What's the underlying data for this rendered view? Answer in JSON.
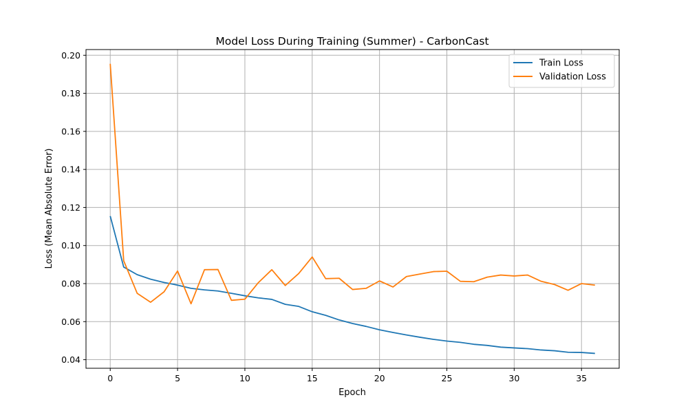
{
  "chart_data": {
    "type": "line",
    "title": "Model Loss During Training (Summer) - CarbonCast",
    "xlabel": "Epoch",
    "ylabel": "Loss (Mean Absolute Error)",
    "xlim": [
      -1.8,
      37.8
    ],
    "ylim": [
      0.0355,
      0.203
    ],
    "xticks": [
      0,
      5,
      10,
      15,
      20,
      25,
      30,
      35
    ],
    "yticks": [
      0.04,
      0.06,
      0.08,
      0.1,
      0.12,
      0.14,
      0.16,
      0.18,
      0.2
    ],
    "xtick_labels": [
      "0",
      "5",
      "10",
      "15",
      "20",
      "25",
      "30",
      "35"
    ],
    "ytick_labels": [
      "0.04",
      "0.06",
      "0.08",
      "0.10",
      "0.12",
      "0.14",
      "0.16",
      "0.18",
      "0.20"
    ],
    "grid": true,
    "legend_position": "top-right",
    "x": [
      0,
      1,
      2,
      3,
      4,
      5,
      6,
      7,
      8,
      9,
      10,
      11,
      12,
      13,
      14,
      15,
      16,
      17,
      18,
      19,
      20,
      21,
      22,
      23,
      24,
      25,
      26,
      27,
      28,
      29,
      30,
      31,
      32,
      33,
      34,
      35,
      36
    ],
    "series": [
      {
        "name": "Train Loss",
        "color": "#1f77b4",
        "values": [
          0.1155,
          0.0887,
          0.0847,
          0.0823,
          0.0806,
          0.0792,
          0.0775,
          0.0767,
          0.0761,
          0.0749,
          0.0736,
          0.0725,
          0.0717,
          0.0691,
          0.068,
          0.0652,
          0.0633,
          0.0609,
          0.059,
          0.0575,
          0.0557,
          0.0543,
          0.053,
          0.0518,
          0.0507,
          0.0498,
          0.0491,
          0.0481,
          0.0475,
          0.0466,
          0.0462,
          0.0458,
          0.0451,
          0.0447,
          0.0439,
          0.0438,
          0.0433
        ]
      },
      {
        "name": "Validation Loss",
        "color": "#ff7f0e",
        "values": [
          0.1955,
          0.092,
          0.0749,
          0.0702,
          0.0757,
          0.0866,
          0.0694,
          0.0873,
          0.0874,
          0.0712,
          0.0718,
          0.0805,
          0.0873,
          0.079,
          0.0853,
          0.094,
          0.0826,
          0.0828,
          0.0769,
          0.0775,
          0.0814,
          0.0782,
          0.0837,
          0.085,
          0.0863,
          0.0865,
          0.0812,
          0.081,
          0.0834,
          0.0845,
          0.084,
          0.0845,
          0.0812,
          0.0795,
          0.0765,
          0.08,
          0.0792
        ]
      }
    ]
  }
}
